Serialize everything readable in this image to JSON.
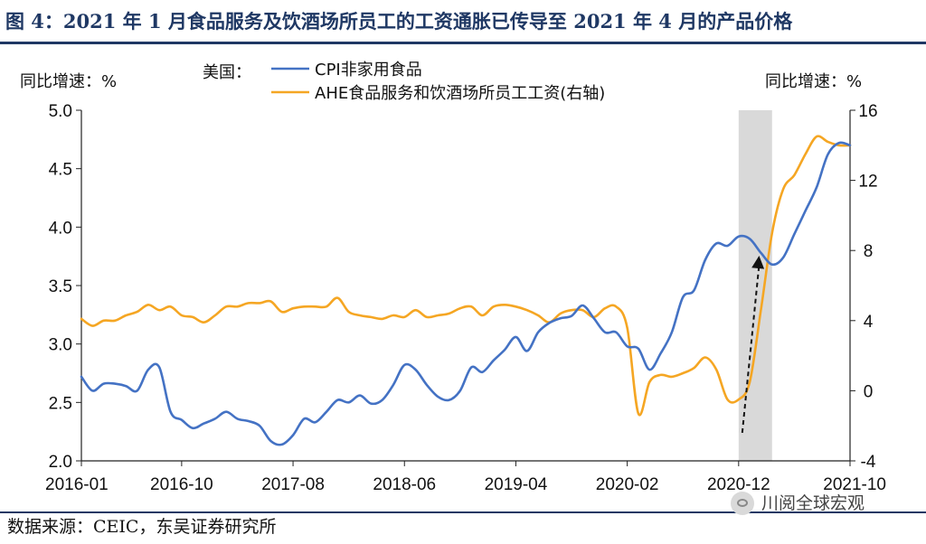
{
  "figure": {
    "title": "图 4：2021 年 1 月食品服务及饮酒场所员工的工资通胀已传导至 2021 年 4 月的产品价格",
    "source": "数据来源：CEIC，东吴证券研究所",
    "watermark": "川阅全球宏观"
  },
  "chart_data": {
    "type": "line",
    "left_axis_label": "同比增速：%",
    "right_axis_label": "同比增速：%",
    "legend_prefix": "美国：",
    "x_tick_labels": [
      "2016-01",
      "2016-10",
      "2017-08",
      "2018-06",
      "2019-04",
      "2020-02",
      "2020-12",
      "2021-10"
    ],
    "x_range": [
      "2016-01",
      "2021-10"
    ],
    "y_left": {
      "range": [
        2.0,
        5.0
      ],
      "ticks": [
        "2.0",
        "2.5",
        "3.0",
        "3.5",
        "4.0",
        "4.5",
        "5.0"
      ]
    },
    "y_right": {
      "range": [
        -4,
        16
      ],
      "ticks": [
        "-4",
        "0",
        "4",
        "8",
        "12",
        "16"
      ]
    },
    "shaded_region": [
      "2020-12",
      "2021-03"
    ],
    "arrow": {
      "from": [
        "2020-12",
        -2.4
      ],
      "to": [
        "2021-02",
        7.7
      ],
      "axis": "right"
    },
    "grid": false,
    "legend_position": "top-center",
    "series": [
      {
        "name": "CPI非家用食品",
        "axis": "left",
        "color": "#4472c4",
        "values": [
          [
            "2016-01",
            2.72
          ],
          [
            "2016-02",
            2.6
          ],
          [
            "2016-03",
            2.66
          ],
          [
            "2016-04",
            2.66
          ],
          [
            "2016-05",
            2.64
          ],
          [
            "2016-06",
            2.6
          ],
          [
            "2016-07",
            2.78
          ],
          [
            "2016-08",
            2.8
          ],
          [
            "2016-09",
            2.42
          ],
          [
            "2016-10",
            2.35
          ],
          [
            "2016-11",
            2.28
          ],
          [
            "2016-12",
            2.32
          ],
          [
            "2017-01",
            2.36
          ],
          [
            "2017-02",
            2.42
          ],
          [
            "2017-03",
            2.36
          ],
          [
            "2017-04",
            2.34
          ],
          [
            "2017-05",
            2.3
          ],
          [
            "2017-06",
            2.17
          ],
          [
            "2017-07",
            2.14
          ],
          [
            "2017-08",
            2.22
          ],
          [
            "2017-09",
            2.36
          ],
          [
            "2017-10",
            2.33
          ],
          [
            "2017-11",
            2.42
          ],
          [
            "2017-12",
            2.52
          ],
          [
            "2018-01",
            2.5
          ],
          [
            "2018-02",
            2.56
          ],
          [
            "2018-03",
            2.49
          ],
          [
            "2018-04",
            2.52
          ],
          [
            "2018-05",
            2.65
          ],
          [
            "2018-06",
            2.82
          ],
          [
            "2018-07",
            2.78
          ],
          [
            "2018-08",
            2.65
          ],
          [
            "2018-09",
            2.55
          ],
          [
            "2018-10",
            2.52
          ],
          [
            "2018-11",
            2.6
          ],
          [
            "2018-12",
            2.8
          ],
          [
            "2019-01",
            2.76
          ],
          [
            "2019-02",
            2.86
          ],
          [
            "2019-03",
            2.95
          ],
          [
            "2019-04",
            3.06
          ],
          [
            "2019-05",
            2.94
          ],
          [
            "2019-06",
            3.1
          ],
          [
            "2019-07",
            3.18
          ],
          [
            "2019-08",
            3.22
          ],
          [
            "2019-09",
            3.24
          ],
          [
            "2019-10",
            3.33
          ],
          [
            "2019-11",
            3.22
          ],
          [
            "2019-12",
            3.1
          ],
          [
            "2020-01",
            3.1
          ],
          [
            "2020-02",
            2.98
          ],
          [
            "2020-03",
            2.96
          ],
          [
            "2020-04",
            2.78
          ],
          [
            "2020-05",
            2.92
          ],
          [
            "2020-06",
            3.1
          ],
          [
            "2020-07",
            3.4
          ],
          [
            "2020-08",
            3.46
          ],
          [
            "2020-09",
            3.72
          ],
          [
            "2020-10",
            3.86
          ],
          [
            "2020-11",
            3.84
          ],
          [
            "2020-12",
            3.92
          ],
          [
            "2021-01",
            3.9
          ],
          [
            "2021-02",
            3.78
          ],
          [
            "2021-03",
            3.68
          ],
          [
            "2021-04",
            3.74
          ],
          [
            "2021-05",
            3.94
          ],
          [
            "2021-06",
            4.14
          ],
          [
            "2021-07",
            4.34
          ],
          [
            "2021-08",
            4.62
          ],
          [
            "2021-09",
            4.72
          ],
          [
            "2021-10",
            4.7
          ]
        ]
      },
      {
        "name": "AHE食品服务和饮酒场所员工工资(右轴)",
        "axis": "right",
        "color": "#f5a623",
        "values": [
          [
            "2016-01",
            4.1
          ],
          [
            "2016-02",
            3.7
          ],
          [
            "2016-03",
            4.0
          ],
          [
            "2016-04",
            4.0
          ],
          [
            "2016-05",
            4.3
          ],
          [
            "2016-06",
            4.5
          ],
          [
            "2016-07",
            4.9
          ],
          [
            "2016-08",
            4.6
          ],
          [
            "2016-09",
            4.8
          ],
          [
            "2016-10",
            4.3
          ],
          [
            "2016-11",
            4.2
          ],
          [
            "2016-12",
            3.9
          ],
          [
            "2017-01",
            4.3
          ],
          [
            "2017-02",
            4.8
          ],
          [
            "2017-03",
            4.8
          ],
          [
            "2017-04",
            5.0
          ],
          [
            "2017-05",
            5.0
          ],
          [
            "2017-06",
            5.1
          ],
          [
            "2017-07",
            4.5
          ],
          [
            "2017-08",
            4.7
          ],
          [
            "2017-09",
            4.8
          ],
          [
            "2017-10",
            4.8
          ],
          [
            "2017-11",
            4.8
          ],
          [
            "2017-12",
            5.3
          ],
          [
            "2018-01",
            4.5
          ],
          [
            "2018-02",
            4.3
          ],
          [
            "2018-03",
            4.2
          ],
          [
            "2018-04",
            4.1
          ],
          [
            "2018-05",
            4.3
          ],
          [
            "2018-06",
            4.2
          ],
          [
            "2018-07",
            4.6
          ],
          [
            "2018-08",
            4.2
          ],
          [
            "2018-09",
            4.3
          ],
          [
            "2018-10",
            4.4
          ],
          [
            "2018-11",
            4.7
          ],
          [
            "2018-12",
            4.8
          ],
          [
            "2019-01",
            4.3
          ],
          [
            "2019-02",
            4.8
          ],
          [
            "2019-03",
            4.9
          ],
          [
            "2019-04",
            4.8
          ],
          [
            "2019-05",
            4.6
          ],
          [
            "2019-06",
            4.3
          ],
          [
            "2019-07",
            3.9
          ],
          [
            "2019-08",
            4.4
          ],
          [
            "2019-09",
            4.6
          ],
          [
            "2019-10",
            4.6
          ],
          [
            "2019-11",
            4.2
          ],
          [
            "2019-12",
            4.7
          ],
          [
            "2020-01",
            4.8
          ],
          [
            "2020-02",
            3.6
          ],
          [
            "2020-03",
            -1.3
          ],
          [
            "2020-04",
            0.5
          ],
          [
            "2020-05",
            0.9
          ],
          [
            "2020-06",
            0.8
          ],
          [
            "2020-07",
            1.0
          ],
          [
            "2020-08",
            1.3
          ],
          [
            "2020-09",
            1.9
          ],
          [
            "2020-10",
            1.2
          ],
          [
            "2020-11",
            -0.5
          ],
          [
            "2020-12",
            -0.5
          ],
          [
            "2021-01",
            0.5
          ],
          [
            "2021-02",
            4.6
          ],
          [
            "2021-03",
            9.0
          ],
          [
            "2021-04",
            11.5
          ],
          [
            "2021-05",
            12.3
          ],
          [
            "2021-06",
            13.5
          ],
          [
            "2021-07",
            14.5
          ],
          [
            "2021-08",
            14.2
          ],
          [
            "2021-09",
            14.0
          ],
          [
            "2021-10",
            14.0
          ]
        ]
      }
    ]
  }
}
